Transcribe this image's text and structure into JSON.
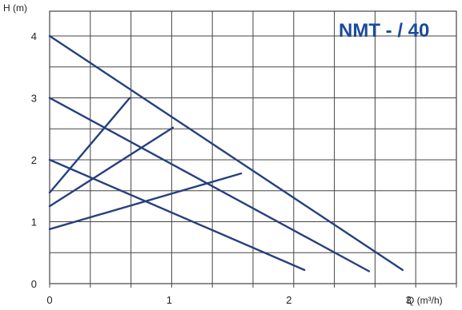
{
  "chart_data": {
    "type": "line",
    "title": "NMT - / 40",
    "ylabel": "H (m)",
    "xlabel": "Q (m³/h)",
    "xlim": [
      0,
      3.4
    ],
    "ylim": [
      0,
      4.4
    ],
    "xticks": [
      "0",
      "1",
      "2",
      "3"
    ],
    "yticks": [
      "0",
      "1",
      "2",
      "3",
      "4"
    ],
    "grid": true,
    "colors": {
      "line": "#26407f",
      "title": "#1c4a9c",
      "grid": "#444444"
    },
    "series": [
      {
        "x": [
          0,
          2.95
        ],
        "y": [
          4.0,
          0.22
        ]
      },
      {
        "x": [
          0,
          2.67
        ],
        "y": [
          3.0,
          0.2
        ]
      },
      {
        "x": [
          0,
          2.13
        ],
        "y": [
          2.0,
          0.22
        ]
      },
      {
        "x": [
          0,
          0.67
        ],
        "y": [
          1.47,
          3.0
        ]
      },
      {
        "x": [
          0,
          1.03
        ],
        "y": [
          1.25,
          2.52
        ]
      },
      {
        "x": [
          0,
          1.6
        ],
        "y": [
          0.88,
          1.78
        ]
      }
    ]
  }
}
